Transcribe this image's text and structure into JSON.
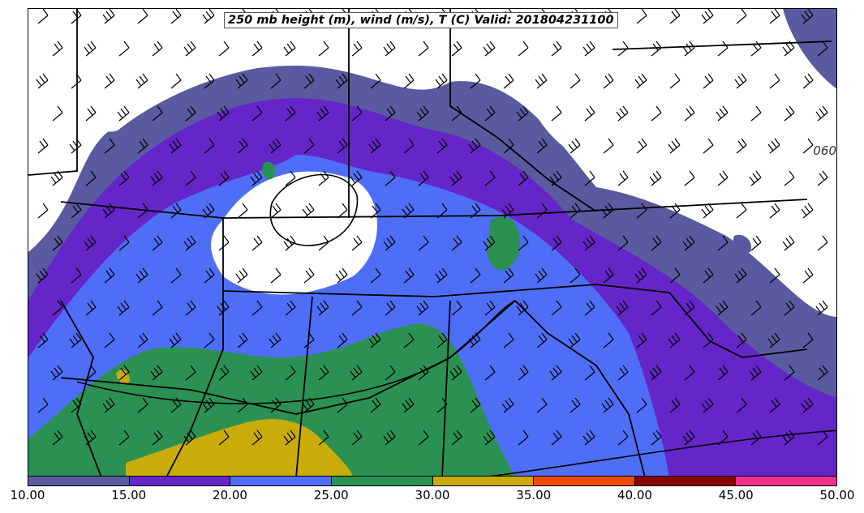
{
  "title": "250 mb height (m), wind (m/s), T (C) Valid: 201804231100",
  "contour_label": "060",
  "colorbar": {
    "ticks": [
      "10.00",
      "15.00",
      "20.00",
      "25.00",
      "30.00",
      "35.00",
      "40.00",
      "45.00",
      "50.00"
    ],
    "colors": [
      "#5a5aa0",
      "#6426c8",
      "#4f6ef7",
      "#2a9152",
      "#c9ab0a",
      "#f04b05",
      "#8c0202",
      "#ef2f8c"
    ]
  }
}
